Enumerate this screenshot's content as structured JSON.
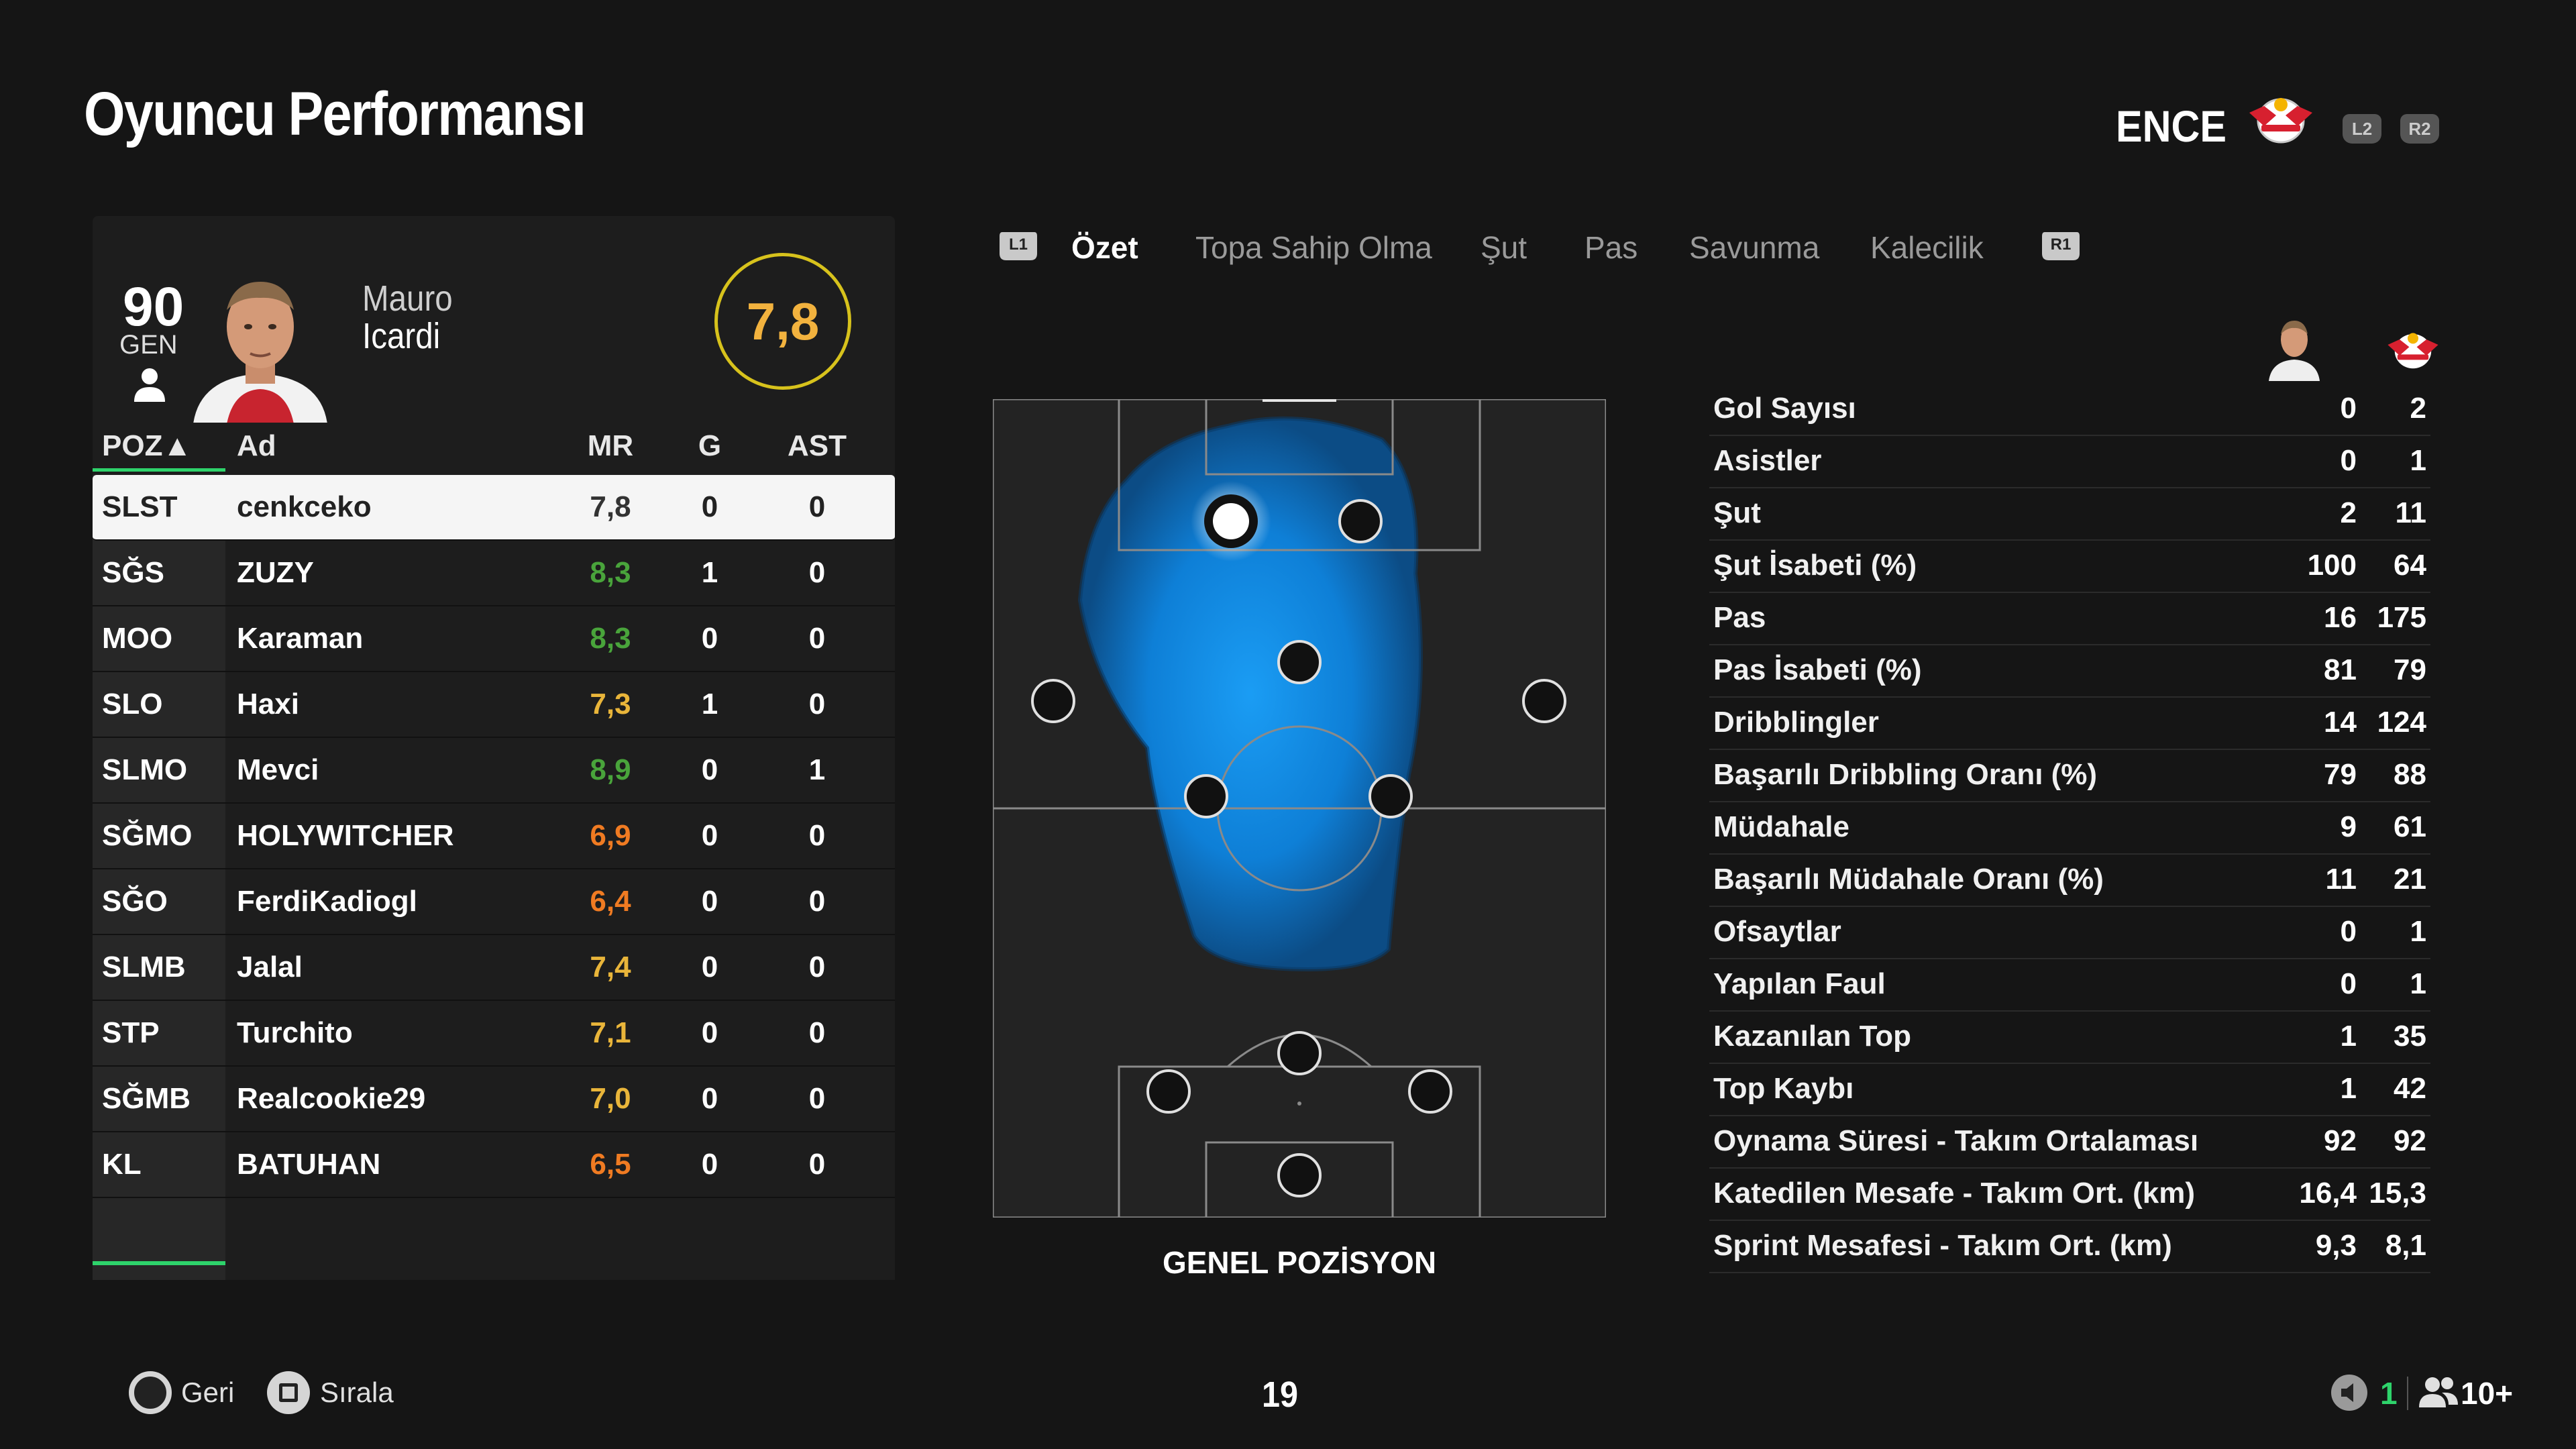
{
  "header": {
    "title": "Oyuncu Performansı",
    "team_abbr": "ENCE",
    "l2": "L2",
    "r2": "R2"
  },
  "player": {
    "gen_value": "90",
    "gen_label": "GEN",
    "first_name": "Mauro",
    "last_name": "Icardi",
    "rating": "7,8",
    "rating_color": "#f2b23e"
  },
  "roster": {
    "headers": {
      "pos": "POZ▲",
      "name": "Ad",
      "mr": "MR",
      "g": "G",
      "ast": "AST"
    },
    "rows": [
      {
        "pos": "SLST",
        "name": "cenkceko",
        "mr": "7,8",
        "g": "0",
        "ast": "0",
        "mr_color": "#333333"
      },
      {
        "pos": "SĞS",
        "name": "ZUZY",
        "mr": "8,3",
        "g": "1",
        "ast": "0",
        "mr_color": "#49a43b"
      },
      {
        "pos": "MOO",
        "name": "Karaman",
        "mr": "8,3",
        "g": "0",
        "ast": "0",
        "mr_color": "#49a43b"
      },
      {
        "pos": "SLO",
        "name": "Haxi",
        "mr": "7,3",
        "g": "1",
        "ast": "0",
        "mr_color": "#e9b53a"
      },
      {
        "pos": "SLMO",
        "name": "Mevci",
        "mr": "8,9",
        "g": "0",
        "ast": "1",
        "mr_color": "#49a43b"
      },
      {
        "pos": "SĞMO",
        "name": "HOLYWITCHER",
        "mr": "6,9",
        "g": "0",
        "ast": "0",
        "mr_color": "#f07b22"
      },
      {
        "pos": "SĞO",
        "name": "FerdiKadiogl",
        "mr": "6,4",
        "g": "0",
        "ast": "0",
        "mr_color": "#f07b22"
      },
      {
        "pos": "SLMB",
        "name": "Jalal",
        "mr": "7,4",
        "g": "0",
        "ast": "0",
        "mr_color": "#e9b53a"
      },
      {
        "pos": "STP",
        "name": "Turchito",
        "mr": "7,1",
        "g": "0",
        "ast": "0",
        "mr_color": "#e9b53a"
      },
      {
        "pos": "SĞMB",
        "name": "Realcookie29",
        "mr": "7,0",
        "g": "0",
        "ast": "0",
        "mr_color": "#e9b53a"
      },
      {
        "pos": "KL",
        "name": "BATUHAN",
        "mr": "6,5",
        "g": "0",
        "ast": "0",
        "mr_color": "#f07b22"
      }
    ]
  },
  "tabs": {
    "l1": "L1",
    "r1": "R1",
    "items": [
      "Özet",
      "Topa Sahip Olma",
      "Şut",
      "Pas",
      "Savunma",
      "Kalecilik"
    ]
  },
  "pitch": {
    "label": "GENEL POZİSYON"
  },
  "stats": [
    {
      "label": "Gol Sayısı",
      "player": "0",
      "team": "2"
    },
    {
      "label": "Asistler",
      "player": "0",
      "team": "1"
    },
    {
      "label": "Şut",
      "player": "2",
      "team": "11"
    },
    {
      "label": "Şut İsabeti (%)",
      "player": "100",
      "team": "64"
    },
    {
      "label": "Pas",
      "player": "16",
      "team": "175"
    },
    {
      "label": "Pas İsabeti (%)",
      "player": "81",
      "team": "79"
    },
    {
      "label": "Dribblingler",
      "player": "14",
      "team": "124"
    },
    {
      "label": "Başarılı Dribbling Oranı (%)",
      "player": "79",
      "team": "88"
    },
    {
      "label": "Müdahale",
      "player": "9",
      "team": "61"
    },
    {
      "label": "Başarılı Müdahale Oranı (%)",
      "player": "11",
      "team": "21"
    },
    {
      "label": "Ofsaytlar",
      "player": "0",
      "team": "1"
    },
    {
      "label": "Yapılan Faul",
      "player": "0",
      "team": "1"
    },
    {
      "label": "Kazanılan Top",
      "player": "1",
      "team": "35"
    },
    {
      "label": "Top Kaybı",
      "player": "1",
      "team": "42"
    },
    {
      "label": "Oynama Süresi - Takım Ortalaması",
      "player": "92",
      "team": "92"
    },
    {
      "label": "Katedilen Mesafe - Takım Ort. (km)",
      "player": "16,4",
      "team": "15,3"
    },
    {
      "label": "Sprint Mesafesi - Takım Ort. (km)",
      "player": "9,3",
      "team": "8,1"
    }
  ],
  "footer": {
    "back_label": "Geri",
    "sort_label": "Sırala",
    "page_number": "19",
    "count_a": "1",
    "count_b": "10+"
  },
  "icons": {
    "crest": "rb-leipzig-crest-icon",
    "user": "user-icon",
    "back": "circle-button-icon",
    "sort": "square-button-icon",
    "mute": "speaker-muted-icon",
    "people": "people-icon"
  }
}
